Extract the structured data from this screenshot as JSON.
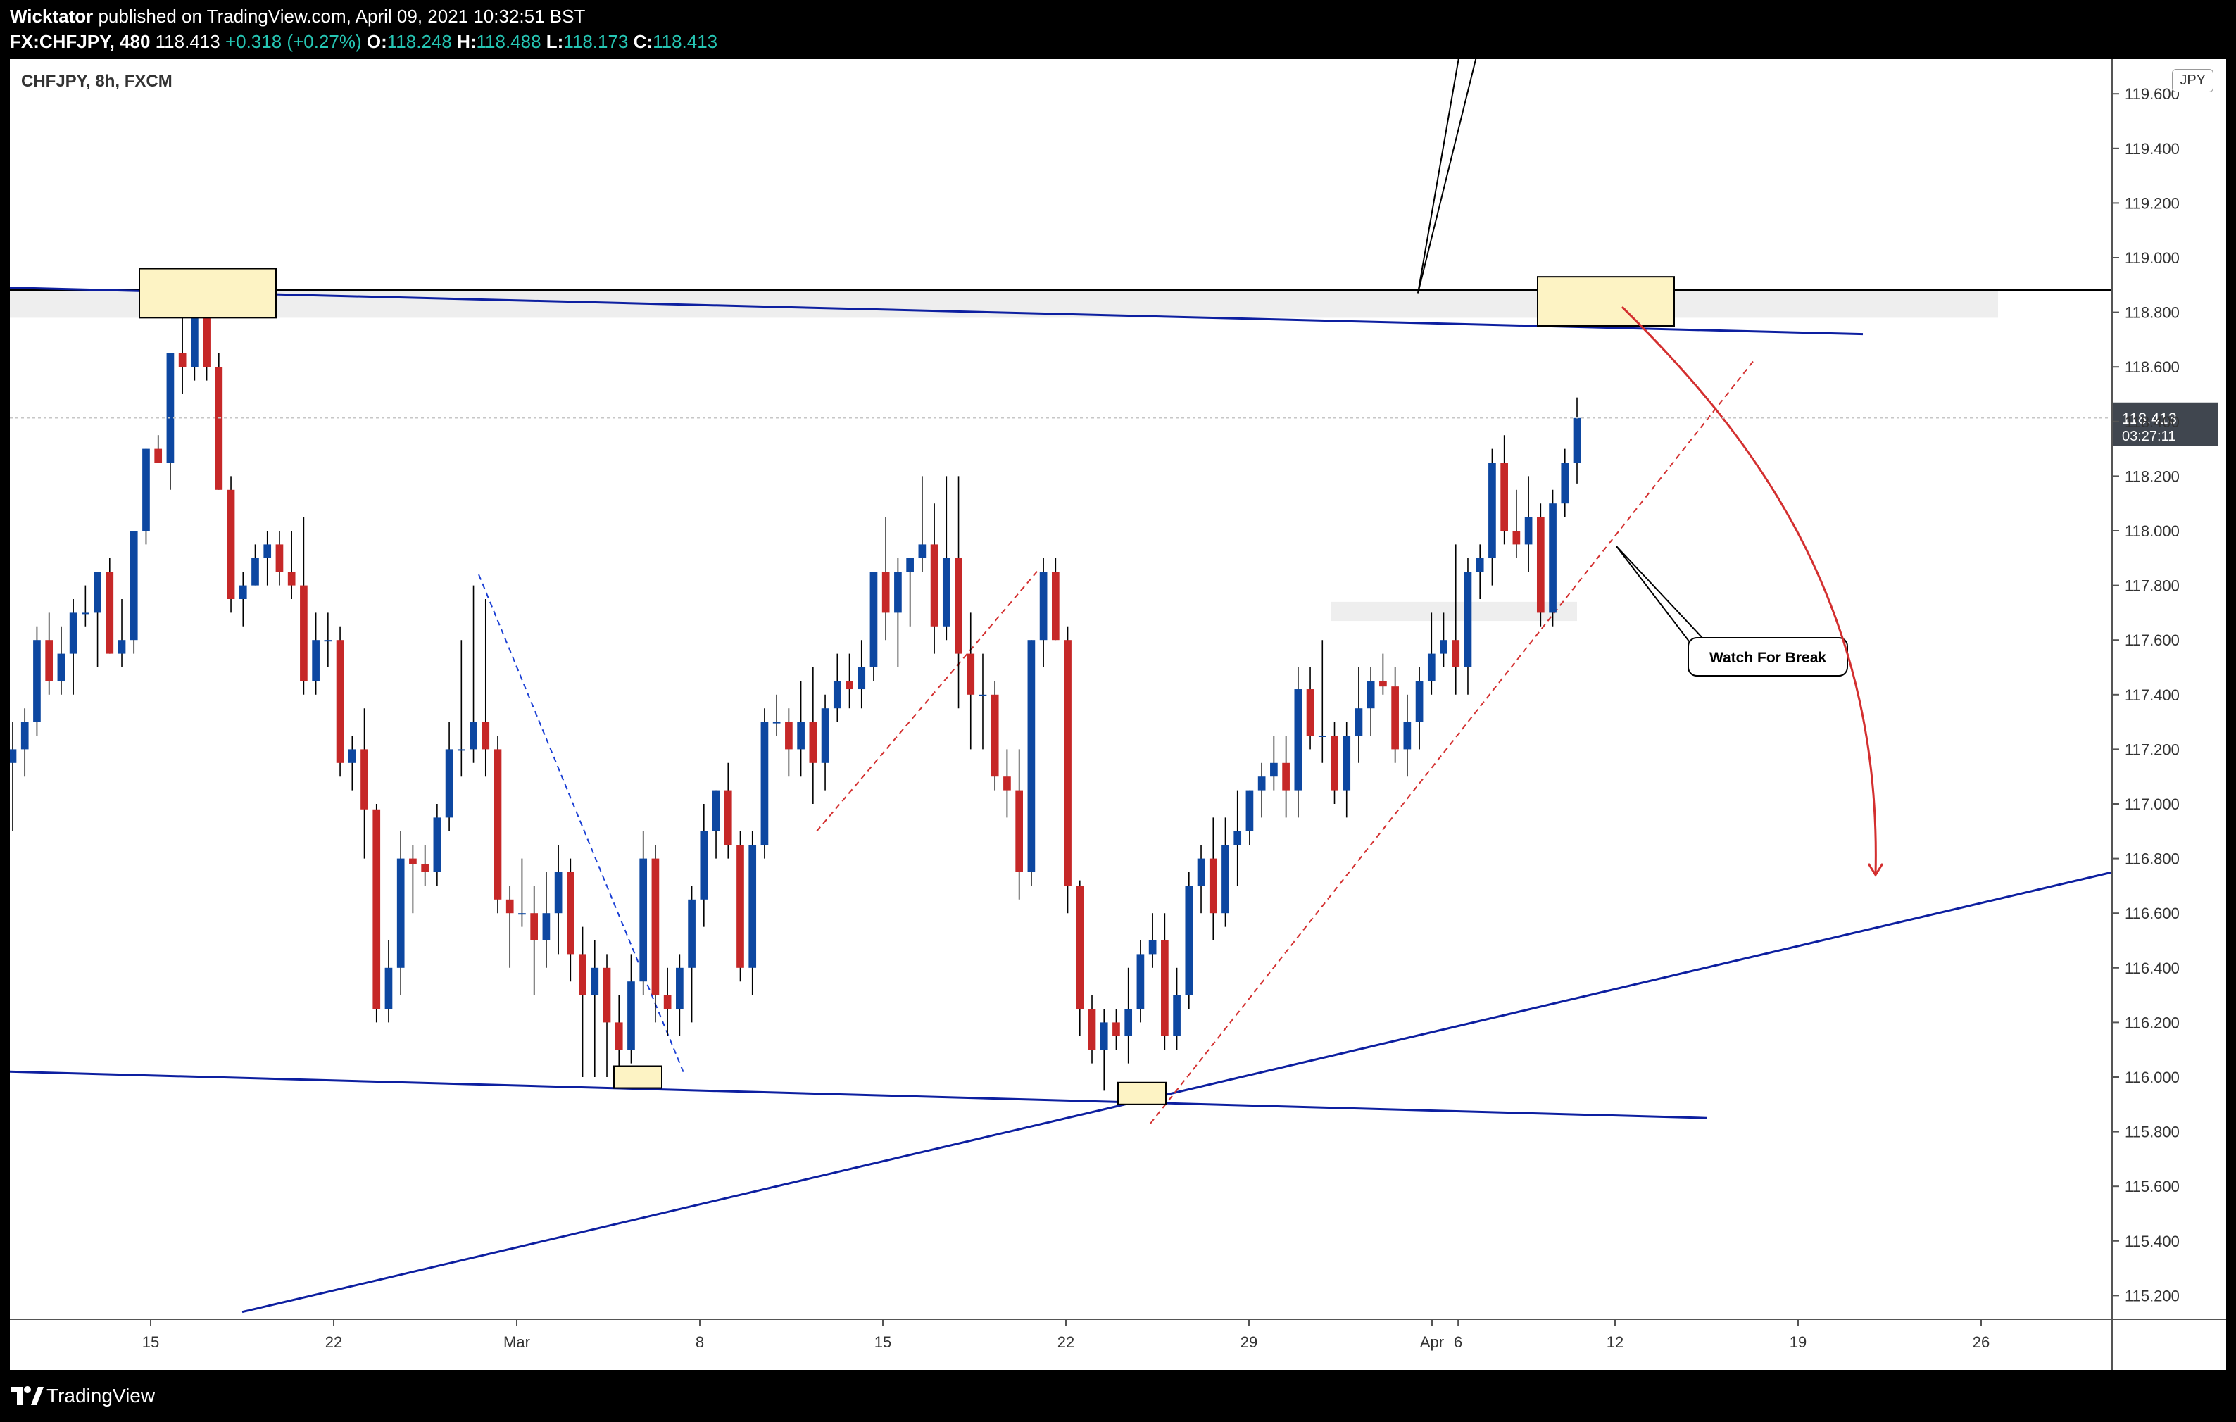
{
  "header": {
    "author": "Wicktator",
    "published_text": "published on TradingView.com, April 09, 2021 10:32:51 BST",
    "symbol_res": "FX:CHFJPY, 480",
    "last": "118.413",
    "change": "+0.318 (+0.27%)",
    "o_label": "O:",
    "o_value": "118.248",
    "h_label": "H:",
    "h_value": "118.488",
    "l_label": "L:",
    "l_value": "118.173",
    "c_label": "C:",
    "c_value": "118.413"
  },
  "symbol_label": "CHFJPY, 8h, FXCM",
  "currency": "JPY",
  "price_tag": {
    "price": "118.413",
    "countdown": "03:27:11"
  },
  "annotation": "Watch For Break",
  "footer": {
    "brand": "TradingView"
  },
  "colors": {
    "up": "#0d47a1",
    "down": "#c62828",
    "trendline": "#0d1fa0",
    "resistance": "#000000",
    "zone_fill": "#fdf3c4",
    "price_tag_bg": "#40464f",
    "arrow": "#d32f2f"
  },
  "chart_data": {
    "type": "candlestick",
    "title": "CHFJPY, 8h, FXCM",
    "ylim": [
      115.1,
      119.7
    ],
    "y_ticks": [
      "119.600",
      "119.400",
      "119.200",
      "119.000",
      "118.800",
      "118.600",
      "118.400",
      "118.200",
      "118.000",
      "117.800",
      "117.600",
      "117.400",
      "117.200",
      "117.000",
      "116.800",
      "116.600",
      "116.400",
      "116.200",
      "116.000",
      "115.800",
      "115.600",
      "115.400",
      "115.200"
    ],
    "x_ticks": [
      {
        "label": "15",
        "date": "2021-02-15"
      },
      {
        "label": "22",
        "date": "2021-02-22"
      },
      {
        "label": "Mar",
        "date": "2021-03-01"
      },
      {
        "label": "8",
        "date": "2021-03-08"
      },
      {
        "label": "15",
        "date": "2021-03-15"
      },
      {
        "label": "22",
        "date": "2021-03-22"
      },
      {
        "label": "29",
        "date": "2021-03-29"
      },
      {
        "label": "Apr",
        "date": "2021-04-05"
      },
      {
        "label": "6",
        "date": "2021-04-06"
      },
      {
        "label": "12",
        "date": "2021-04-12"
      },
      {
        "label": "19",
        "date": "2021-04-19"
      },
      {
        "label": "26",
        "date": "2021-04-26"
      }
    ],
    "last_price": 118.413,
    "candles": [
      {
        "o": 117.15,
        "h": 117.3,
        "l": 116.9,
        "c": 117.2
      },
      {
        "o": 117.2,
        "h": 117.35,
        "l": 117.1,
        "c": 117.3
      },
      {
        "o": 117.3,
        "h": 117.65,
        "l": 117.25,
        "c": 117.6
      },
      {
        "o": 117.6,
        "h": 117.7,
        "l": 117.4,
        "c": 117.45
      },
      {
        "o": 117.45,
        "h": 117.65,
        "l": 117.4,
        "c": 117.55
      },
      {
        "o": 117.55,
        "h": 117.75,
        "l": 117.4,
        "c": 117.7
      },
      {
        "o": 117.7,
        "h": 117.8,
        "l": 117.65,
        "c": 117.7
      },
      {
        "o": 117.7,
        "h": 117.85,
        "l": 117.5,
        "c": 117.85
      },
      {
        "o": 117.85,
        "h": 117.9,
        "l": 117.55,
        "c": 117.55
      },
      {
        "o": 117.55,
        "h": 117.75,
        "l": 117.5,
        "c": 117.6
      },
      {
        "o": 117.6,
        "h": 118.0,
        "l": 117.55,
        "c": 118.0
      },
      {
        "o": 118.0,
        "h": 118.3,
        "l": 117.95,
        "c": 118.3
      },
      {
        "o": 118.3,
        "h": 118.35,
        "l": 118.25,
        "c": 118.25
      },
      {
        "o": 118.25,
        "h": 118.65,
        "l": 118.15,
        "c": 118.65
      },
      {
        "o": 118.65,
        "h": 118.85,
        "l": 118.5,
        "c": 118.6
      },
      {
        "o": 118.6,
        "h": 118.9,
        "l": 118.55,
        "c": 118.8
      },
      {
        "o": 118.8,
        "h": 118.85,
        "l": 118.55,
        "c": 118.6
      },
      {
        "o": 118.6,
        "h": 118.65,
        "l": 118.15,
        "c": 118.15
      },
      {
        "o": 118.15,
        "h": 118.2,
        "l": 117.7,
        "c": 117.75
      },
      {
        "o": 117.75,
        "h": 117.85,
        "l": 117.65,
        "c": 117.8
      },
      {
        "o": 117.8,
        "h": 117.95,
        "l": 117.8,
        "c": 117.9
      },
      {
        "o": 117.9,
        "h": 118.0,
        "l": 117.8,
        "c": 117.95
      },
      {
        "o": 117.95,
        "h": 118.0,
        "l": 117.8,
        "c": 117.85
      },
      {
        "o": 117.85,
        "h": 118.0,
        "l": 117.75,
        "c": 117.8
      },
      {
        "o": 117.8,
        "h": 118.05,
        "l": 117.4,
        "c": 117.45
      },
      {
        "o": 117.45,
        "h": 117.7,
        "l": 117.4,
        "c": 117.6
      },
      {
        "o": 117.6,
        "h": 117.7,
        "l": 117.5,
        "c": 117.6
      },
      {
        "o": 117.6,
        "h": 117.65,
        "l": 117.1,
        "c": 117.15
      },
      {
        "o": 117.15,
        "h": 117.25,
        "l": 117.05,
        "c": 117.2
      },
      {
        "o": 117.2,
        "h": 117.35,
        "l": 116.8,
        "c": 116.98
      },
      {
        "o": 116.98,
        "h": 117.0,
        "l": 116.2,
        "c": 116.25
      },
      {
        "o": 116.25,
        "h": 116.5,
        "l": 116.2,
        "c": 116.4
      },
      {
        "o": 116.4,
        "h": 116.9,
        "l": 116.3,
        "c": 116.8
      },
      {
        "o": 116.8,
        "h": 116.85,
        "l": 116.6,
        "c": 116.78
      },
      {
        "o": 116.78,
        "h": 116.85,
        "l": 116.7,
        "c": 116.75
      },
      {
        "o": 116.75,
        "h": 117.0,
        "l": 116.7,
        "c": 116.95
      },
      {
        "o": 116.95,
        "h": 117.3,
        "l": 116.9,
        "c": 117.2
      },
      {
        "o": 117.2,
        "h": 117.6,
        "l": 117.1,
        "c": 117.2
      },
      {
        "o": 117.2,
        "h": 117.8,
        "l": 117.15,
        "c": 117.3
      },
      {
        "o": 117.3,
        "h": 117.75,
        "l": 117.1,
        "c": 117.2
      },
      {
        "o": 117.2,
        "h": 117.25,
        "l": 116.6,
        "c": 116.65
      },
      {
        "o": 116.65,
        "h": 116.7,
        "l": 116.4,
        "c": 116.6
      },
      {
        "o": 116.6,
        "h": 116.8,
        "l": 116.55,
        "c": 116.6
      },
      {
        "o": 116.6,
        "h": 116.7,
        "l": 116.3,
        "c": 116.5
      },
      {
        "o": 116.5,
        "h": 116.75,
        "l": 116.4,
        "c": 116.6
      },
      {
        "o": 116.6,
        "h": 116.85,
        "l": 116.45,
        "c": 116.75
      },
      {
        "o": 116.75,
        "h": 116.8,
        "l": 116.35,
        "c": 116.45
      },
      {
        "o": 116.45,
        "h": 116.55,
        "l": 116.0,
        "c": 116.3
      },
      {
        "o": 116.3,
        "h": 116.5,
        "l": 116.0,
        "c": 116.4
      },
      {
        "o": 116.4,
        "h": 116.45,
        "l": 116.0,
        "c": 116.2
      },
      {
        "o": 116.2,
        "h": 116.3,
        "l": 116.0,
        "c": 116.1
      },
      {
        "o": 116.1,
        "h": 116.45,
        "l": 116.05,
        "c": 116.35
      },
      {
        "o": 116.35,
        "h": 116.9,
        "l": 116.3,
        "c": 116.8
      },
      {
        "o": 116.8,
        "h": 116.85,
        "l": 116.2,
        "c": 116.3
      },
      {
        "o": 116.3,
        "h": 116.4,
        "l": 116.15,
        "c": 116.25
      },
      {
        "o": 116.25,
        "h": 116.45,
        "l": 116.15,
        "c": 116.4
      },
      {
        "o": 116.4,
        "h": 116.7,
        "l": 116.2,
        "c": 116.65
      },
      {
        "o": 116.65,
        "h": 117.0,
        "l": 116.55,
        "c": 116.9
      },
      {
        "o": 116.9,
        "h": 117.05,
        "l": 116.8,
        "c": 117.05
      },
      {
        "o": 117.05,
        "h": 117.15,
        "l": 116.8,
        "c": 116.85
      },
      {
        "o": 116.85,
        "h": 116.9,
        "l": 116.35,
        "c": 116.4
      },
      {
        "o": 116.4,
        "h": 116.9,
        "l": 116.3,
        "c": 116.85
      },
      {
        "o": 116.85,
        "h": 117.35,
        "l": 116.8,
        "c": 117.3
      },
      {
        "o": 117.3,
        "h": 117.4,
        "l": 117.25,
        "c": 117.3
      },
      {
        "o": 117.3,
        "h": 117.35,
        "l": 117.1,
        "c": 117.2
      },
      {
        "o": 117.2,
        "h": 117.45,
        "l": 117.1,
        "c": 117.3
      },
      {
        "o": 117.3,
        "h": 117.5,
        "l": 117.0,
        "c": 117.15
      },
      {
        "o": 117.15,
        "h": 117.4,
        "l": 117.05,
        "c": 117.35
      },
      {
        "o": 117.35,
        "h": 117.55,
        "l": 117.3,
        "c": 117.45
      },
      {
        "o": 117.45,
        "h": 117.55,
        "l": 117.35,
        "c": 117.42
      },
      {
        "o": 117.42,
        "h": 117.6,
        "l": 117.35,
        "c": 117.5
      },
      {
        "o": 117.5,
        "h": 117.85,
        "l": 117.45,
        "c": 117.85
      },
      {
        "o": 117.85,
        "h": 118.05,
        "l": 117.6,
        "c": 117.7
      },
      {
        "o": 117.7,
        "h": 117.9,
        "l": 117.5,
        "c": 117.85
      },
      {
        "o": 117.85,
        "h": 117.9,
        "l": 117.65,
        "c": 117.9
      },
      {
        "o": 117.9,
        "h": 118.2,
        "l": 117.85,
        "c": 117.95
      },
      {
        "o": 117.95,
        "h": 118.1,
        "l": 117.55,
        "c": 117.65
      },
      {
        "o": 117.65,
        "h": 118.2,
        "l": 117.6,
        "c": 117.9
      },
      {
        "o": 117.9,
        "h": 118.2,
        "l": 117.35,
        "c": 117.55
      },
      {
        "o": 117.55,
        "h": 117.7,
        "l": 117.2,
        "c": 117.4
      },
      {
        "o": 117.4,
        "h": 117.55,
        "l": 117.2,
        "c": 117.4
      },
      {
        "o": 117.4,
        "h": 117.45,
        "l": 117.05,
        "c": 117.1
      },
      {
        "o": 117.1,
        "h": 117.2,
        "l": 116.95,
        "c": 117.05
      },
      {
        "o": 117.05,
        "h": 117.2,
        "l": 116.65,
        "c": 116.75
      },
      {
        "o": 116.75,
        "h": 117.6,
        "l": 116.7,
        "c": 117.6
      },
      {
        "o": 117.6,
        "h": 117.9,
        "l": 117.5,
        "c": 117.85
      },
      {
        "o": 117.85,
        "h": 117.9,
        "l": 117.6,
        "c": 117.6
      },
      {
        "o": 117.6,
        "h": 117.65,
        "l": 116.6,
        "c": 116.7
      },
      {
        "o": 116.7,
        "h": 116.72,
        "l": 116.15,
        "c": 116.25
      },
      {
        "o": 116.25,
        "h": 116.3,
        "l": 116.05,
        "c": 116.1
      },
      {
        "o": 116.1,
        "h": 116.25,
        "l": 115.95,
        "c": 116.2
      },
      {
        "o": 116.2,
        "h": 116.25,
        "l": 116.1,
        "c": 116.15
      },
      {
        "o": 116.15,
        "h": 116.4,
        "l": 116.05,
        "c": 116.25
      },
      {
        "o": 116.25,
        "h": 116.5,
        "l": 116.2,
        "c": 116.45
      },
      {
        "o": 116.45,
        "h": 116.6,
        "l": 116.4,
        "c": 116.5
      },
      {
        "o": 116.5,
        "h": 116.6,
        "l": 116.1,
        "c": 116.15
      },
      {
        "o": 116.15,
        "h": 116.4,
        "l": 116.1,
        "c": 116.3
      },
      {
        "o": 116.3,
        "h": 116.75,
        "l": 116.25,
        "c": 116.7
      },
      {
        "o": 116.7,
        "h": 116.85,
        "l": 116.6,
        "c": 116.8
      },
      {
        "o": 116.8,
        "h": 116.95,
        "l": 116.5,
        "c": 116.6
      },
      {
        "o": 116.6,
        "h": 116.95,
        "l": 116.55,
        "c": 116.85
      },
      {
        "o": 116.85,
        "h": 117.05,
        "l": 116.7,
        "c": 116.9
      },
      {
        "o": 116.9,
        "h": 117.05,
        "l": 116.85,
        "c": 117.05
      },
      {
        "o": 117.05,
        "h": 117.15,
        "l": 116.95,
        "c": 117.1
      },
      {
        "o": 117.1,
        "h": 117.25,
        "l": 117.05,
        "c": 117.15
      },
      {
        "o": 117.15,
        "h": 117.25,
        "l": 116.95,
        "c": 117.05
      },
      {
        "o": 117.05,
        "h": 117.5,
        "l": 116.95,
        "c": 117.42
      },
      {
        "o": 117.42,
        "h": 117.5,
        "l": 117.2,
        "c": 117.25
      },
      {
        "o": 117.25,
        "h": 117.6,
        "l": 117.15,
        "c": 117.25
      },
      {
        "o": 117.25,
        "h": 117.3,
        "l": 117.0,
        "c": 117.05
      },
      {
        "o": 117.05,
        "h": 117.3,
        "l": 116.95,
        "c": 117.25
      },
      {
        "o": 117.25,
        "h": 117.5,
        "l": 117.15,
        "c": 117.35
      },
      {
        "o": 117.35,
        "h": 117.5,
        "l": 117.25,
        "c": 117.45
      },
      {
        "o": 117.45,
        "h": 117.55,
        "l": 117.4,
        "c": 117.43
      },
      {
        "o": 117.43,
        "h": 117.5,
        "l": 117.15,
        "c": 117.2
      },
      {
        "o": 117.2,
        "h": 117.4,
        "l": 117.1,
        "c": 117.3
      },
      {
        "o": 117.3,
        "h": 117.5,
        "l": 117.2,
        "c": 117.45
      },
      {
        "o": 117.45,
        "h": 117.7,
        "l": 117.4,
        "c": 117.55
      },
      {
        "o": 117.55,
        "h": 117.7,
        "l": 117.5,
        "c": 117.6
      },
      {
        "o": 117.6,
        "h": 117.95,
        "l": 117.4,
        "c": 117.5
      },
      {
        "o": 117.5,
        "h": 117.9,
        "l": 117.4,
        "c": 117.85
      },
      {
        "o": 117.85,
        "h": 117.95,
        "l": 117.75,
        "c": 117.9
      },
      {
        "o": 117.9,
        "h": 118.3,
        "l": 117.8,
        "c": 118.25
      },
      {
        "o": 118.25,
        "h": 118.35,
        "l": 117.95,
        "c": 118.0
      },
      {
        "o": 118.0,
        "h": 118.15,
        "l": 117.9,
        "c": 117.95
      },
      {
        "o": 117.95,
        "h": 118.2,
        "l": 117.85,
        "c": 118.05
      },
      {
        "o": 118.05,
        "h": 118.1,
        "l": 117.65,
        "c": 117.7
      },
      {
        "o": 117.7,
        "h": 118.15,
        "l": 117.65,
        "c": 118.1
      },
      {
        "o": 118.1,
        "h": 118.3,
        "l": 118.05,
        "c": 118.25
      },
      {
        "o": 118.25,
        "h": 118.488,
        "l": 118.173,
        "c": 118.413
      }
    ]
  }
}
